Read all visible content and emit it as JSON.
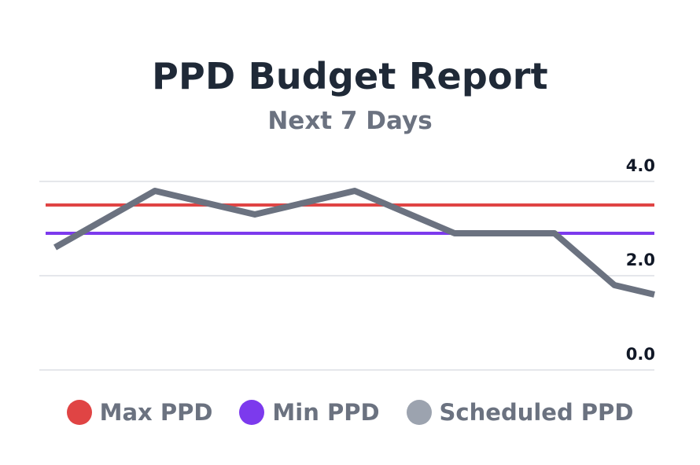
{
  "chart_data": {
    "type": "line",
    "title": "PPD Budget Report",
    "subtitle": "Next 7 Days",
    "xlabel": "",
    "ylabel": "",
    "ylim": [
      0,
      4
    ],
    "y_ticks": [
      "4.0",
      "2.0",
      "0.0"
    ],
    "y_tick_values": [
      4,
      2,
      0
    ],
    "grid": true,
    "legend_position": "bottom",
    "series": [
      {
        "name": "Max PPD",
        "color": "#e04444",
        "x": [
          0,
          1,
          2,
          3,
          4,
          5,
          6
        ],
        "values": [
          3.5,
          3.5,
          3.5,
          3.5,
          3.5,
          3.5,
          3.5
        ]
      },
      {
        "name": "Min PPD",
        "color": "#7c3aed",
        "x": [
          0,
          1,
          2,
          3,
          4,
          5,
          6
        ],
        "values": [
          2.9,
          2.9,
          2.9,
          2.9,
          2.9,
          2.9,
          2.9
        ]
      },
      {
        "name": "Scheduled PPD",
        "color": "#6b7280",
        "x": [
          0,
          1,
          2,
          3,
          4,
          5,
          5.6,
          6
        ],
        "values": [
          2.6,
          3.8,
          3.3,
          3.8,
          2.9,
          2.9,
          1.8,
          1.6
        ]
      }
    ]
  },
  "legend": {
    "items": [
      {
        "label": "Max PPD",
        "color": "#e04444"
      },
      {
        "label": "Min PPD",
        "color": "#7c3aed"
      },
      {
        "label": "Scheduled PPD",
        "color": "#9ca3af"
      }
    ]
  }
}
